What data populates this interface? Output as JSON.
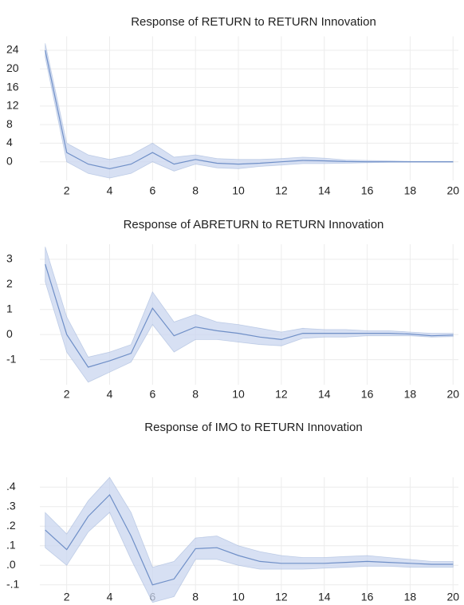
{
  "chart_data": [
    {
      "type": "line",
      "title": "Response of RETURN to RETURN Innovation",
      "x": [
        1,
        2,
        3,
        4,
        5,
        6,
        7,
        8,
        9,
        10,
        11,
        12,
        13,
        14,
        15,
        16,
        17,
        18,
        19,
        20
      ],
      "values": [
        24,
        2,
        -0.5,
        -1.5,
        -0.5,
        2,
        -0.5,
        0.5,
        -0.3,
        -0.5,
        -0.3,
        0,
        0.3,
        0.2,
        0.05,
        0,
        0,
        0,
        0,
        0
      ],
      "upper": [
        25.5,
        4,
        1.5,
        0.5,
        1.5,
        4,
        1,
        1.5,
        0.7,
        0.5,
        0.5,
        0.7,
        1,
        0.8,
        0.4,
        0.3,
        0.2,
        0.1,
        0.1,
        0.1
      ],
      "lower": [
        22.5,
        0,
        -2.5,
        -3.5,
        -2.5,
        0,
        -2,
        -0.5,
        -1.3,
        -1.5,
        -1,
        -0.7,
        -0.4,
        -0.4,
        -0.3,
        -0.2,
        -0.1,
        -0.1,
        -0.1,
        -0.1
      ],
      "color": "#6f8fc7",
      "band_color": "#c9d6ef",
      "xlim": [
        0.75,
        20.25
      ],
      "xticks": [
        2,
        4,
        6,
        8,
        10,
        12,
        14,
        16,
        18,
        20
      ],
      "ylim": [
        -4,
        27
      ],
      "yticks": [
        0,
        4,
        8,
        12,
        16,
        20,
        24
      ],
      "grid": true
    },
    {
      "type": "line",
      "title": "Response of ABRETURN to RETURN Innovation",
      "x": [
        1,
        2,
        3,
        4,
        5,
        6,
        7,
        8,
        9,
        10,
        11,
        12,
        13,
        14,
        15,
        16,
        17,
        18,
        19,
        20
      ],
      "values": [
        2.8,
        0,
        -1.3,
        -1.05,
        -0.75,
        1.05,
        -0.05,
        0.3,
        0.15,
        0.05,
        -0.1,
        -0.2,
        0.05,
        0.05,
        0.05,
        0.05,
        0.05,
        0.02,
        -0.05,
        -0.02
      ],
      "upper": [
        3.5,
        0.7,
        -0.9,
        -0.7,
        -0.4,
        1.7,
        0.5,
        0.8,
        0.5,
        0.4,
        0.25,
        0.1,
        0.25,
        0.2,
        0.2,
        0.15,
        0.15,
        0.1,
        0.05,
        0.05
      ],
      "lower": [
        2.1,
        -0.7,
        -1.9,
        -1.5,
        -1.1,
        0.4,
        -0.7,
        -0.2,
        -0.2,
        -0.3,
        -0.4,
        -0.45,
        -0.15,
        -0.1,
        -0.1,
        -0.05,
        -0.05,
        -0.05,
        -0.1,
        -0.08
      ],
      "color": "#6f8fc7",
      "band_color": "#c9d6ef",
      "xlim": [
        0.75,
        20.25
      ],
      "xticks": [
        2,
        4,
        6,
        8,
        10,
        12,
        14,
        16,
        18,
        20
      ],
      "ylim": [
        -2,
        3.6
      ],
      "yticks": [
        -1,
        0,
        1,
        2,
        3
      ],
      "grid": true
    },
    {
      "type": "line",
      "title": "Response of IMO to RETURN Innovation",
      "x": [
        1,
        2,
        3,
        4,
        5,
        6,
        7,
        8,
        9,
        10,
        11,
        12,
        13,
        14,
        15,
        16,
        17,
        18,
        19,
        20
      ],
      "values": [
        0.18,
        0.08,
        0.25,
        0.36,
        0.15,
        -0.1,
        -0.07,
        0.085,
        0.09,
        0.05,
        0.02,
        0.01,
        0.01,
        0.01,
        0.015,
        0.02,
        0.015,
        0.01,
        0.005,
        0.005
      ],
      "upper": [
        0.27,
        0.16,
        0.33,
        0.45,
        0.27,
        -0.01,
        0.02,
        0.14,
        0.15,
        0.1,
        0.07,
        0.05,
        0.04,
        0.04,
        0.045,
        0.05,
        0.04,
        0.03,
        0.02,
        0.02
      ],
      "lower": [
        0.09,
        0,
        0.17,
        0.27,
        0.03,
        -0.19,
        -0.16,
        0.03,
        0.03,
        0,
        -0.02,
        -0.02,
        -0.02,
        -0.015,
        -0.01,
        -0.005,
        -0.005,
        -0.01,
        -0.01,
        -0.01
      ],
      "color": "#6f8fc7",
      "band_color": "#c9d6ef",
      "xlim": [
        0.75,
        20.25
      ],
      "xticks": [
        2,
        4,
        6,
        8,
        10,
        12,
        14,
        16,
        18,
        20
      ],
      "ylim": [
        -0.15,
        0.45
      ],
      "yticks": [
        {
          "value": -0.1,
          "label": "-.1"
        },
        {
          "value": 0,
          "label": ".0"
        },
        {
          "value": 0.1,
          "label": ".1"
        },
        {
          "value": 0.2,
          "label": ".2"
        },
        {
          "value": 0.3,
          "label": ".3"
        },
        {
          "value": 0.4,
          "label": ".4"
        }
      ],
      "grid": true
    }
  ]
}
